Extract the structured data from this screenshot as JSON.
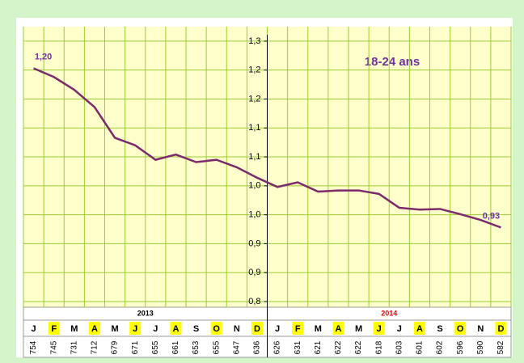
{
  "chart_data": {
    "type": "line",
    "annotation": "18-24 ans",
    "categories": [
      "J",
      "F",
      "M",
      "A",
      "M",
      "J",
      "J",
      "A",
      "S",
      "O",
      "N",
      "D",
      "J",
      "F",
      "M",
      "A",
      "M",
      "J",
      "J",
      "A",
      "S",
      "O",
      "N",
      "D"
    ],
    "year_labels": [
      "2013",
      "2014"
    ],
    "counts": [
      "754",
      "745",
      "731",
      "712",
      "679",
      "671",
      "655",
      "661",
      "653",
      "655",
      "647",
      "636",
      "626",
      "631",
      "621",
      "622",
      "622",
      "618",
      "603",
      "601",
      "602",
      "596",
      "590",
      "582"
    ],
    "values": [
      1.203,
      1.188,
      1.166,
      1.136,
      1.083,
      1.07,
      1.045,
      1.054,
      1.041,
      1.045,
      1.032,
      1.014,
      0.998,
      1.006,
      0.99,
      0.992,
      0.992,
      0.986,
      0.962,
      0.959,
      0.96,
      0.951,
      0.941,
      0.928
    ],
    "value_labels": [
      "1,20",
      null,
      null,
      null,
      null,
      null,
      null,
      null,
      null,
      null,
      null,
      null,
      null,
      null,
      null,
      null,
      null,
      null,
      null,
      null,
      null,
      null,
      null,
      "0,93"
    ],
    "color": "#7b2a6b",
    "ylim": [
      0.8,
      1.275
    ],
    "yticks": [
      {
        "value": 1.25,
        "label": "1,3"
      },
      {
        "value": 1.2,
        "label": "1,2"
      },
      {
        "value": 1.15,
        "label": "1,2"
      },
      {
        "value": 1.1,
        "label": "1,1"
      },
      {
        "value": 1.05,
        "label": "1,1"
      },
      {
        "value": 1.0,
        "label": "1,0"
      },
      {
        "value": 0.95,
        "label": "1,0"
      },
      {
        "value": 0.9,
        "label": "0,9"
      },
      {
        "value": 0.85,
        "label": "0,9"
      },
      {
        "value": 0.8,
        "label": "0,8"
      }
    ],
    "grid": true
  }
}
